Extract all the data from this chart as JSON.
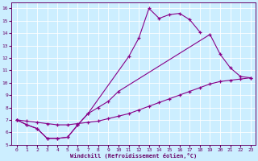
{
  "background_color": "#cceeff",
  "line_color": "#880088",
  "xlabel": "Windchill (Refroidissement éolien,°C)",
  "xlim": [
    -0.5,
    23.5
  ],
  "ylim": [
    5,
    16.5
  ],
  "xticks": [
    0,
    1,
    2,
    3,
    4,
    5,
    6,
    7,
    8,
    9,
    10,
    11,
    12,
    13,
    14,
    15,
    16,
    17,
    18,
    19,
    20,
    21,
    22,
    23
  ],
  "yticks": [
    5,
    6,
    7,
    8,
    9,
    10,
    11,
    12,
    13,
    14,
    15,
    16
  ],
  "line1_x": [
    0,
    1,
    2,
    3,
    4,
    5,
    6,
    7,
    11,
    12,
    13,
    14,
    15,
    16,
    17,
    18
  ],
  "line1_y": [
    7.0,
    6.6,
    6.3,
    5.5,
    5.5,
    5.6,
    6.6,
    7.5,
    12.1,
    13.6,
    16.0,
    15.2,
    15.5,
    15.6,
    15.1,
    14.1
  ],
  "line2_x": [
    0,
    1,
    2,
    3,
    4,
    5,
    6,
    7,
    8,
    9,
    10,
    19,
    20,
    21,
    22,
    23
  ],
  "line2_y": [
    7.0,
    6.6,
    6.3,
    5.5,
    5.5,
    5.6,
    6.6,
    7.5,
    8.0,
    8.5,
    9.3,
    13.9,
    12.3,
    11.2,
    10.5,
    10.4
  ],
  "line3_x": [
    0,
    1,
    2,
    3,
    4,
    5,
    6,
    7,
    8,
    9,
    10,
    11,
    12,
    13,
    14,
    15,
    16,
    17,
    18,
    19,
    20,
    21,
    22,
    23
  ],
  "line3_y": [
    7.0,
    6.9,
    6.8,
    6.7,
    6.6,
    6.6,
    6.7,
    6.8,
    6.9,
    7.1,
    7.3,
    7.5,
    7.8,
    8.1,
    8.4,
    8.7,
    9.0,
    9.3,
    9.6,
    9.9,
    10.1,
    10.2,
    10.3,
    10.4
  ]
}
